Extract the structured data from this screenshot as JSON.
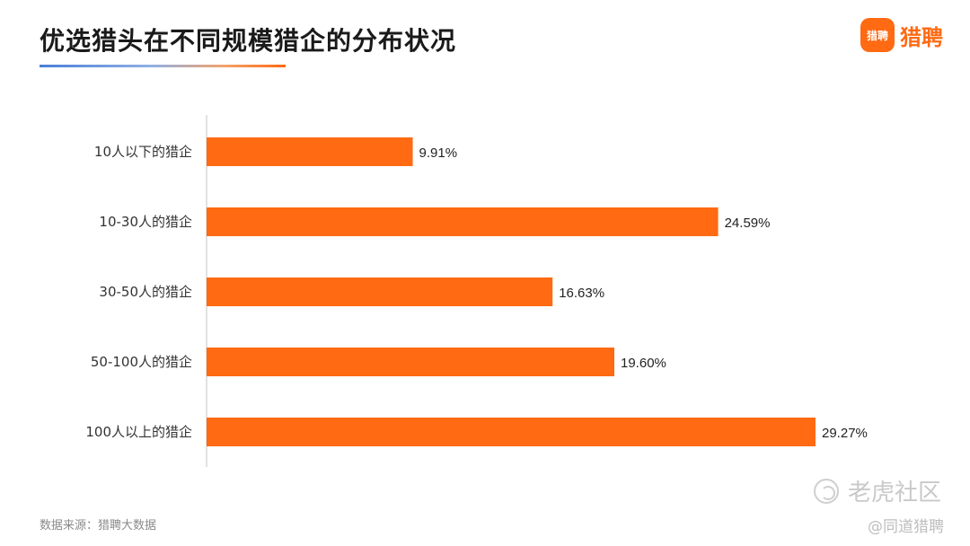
{
  "title": "优选猎头在不同规模猎企的分布状况",
  "logo": {
    "badge_text": "猎聘",
    "brand_text": "猎聘"
  },
  "source": "数据来源：猎聘大数据",
  "watermark": {
    "site": "老虎社区",
    "handle": "@同道猎聘"
  },
  "colors": {
    "bar": "#ff6a13",
    "axis": "#d9d9d9",
    "accent": "#ff6a13"
  },
  "chart_data": {
    "type": "bar",
    "orientation": "horizontal",
    "categories": [
      "10人以下的猎企",
      "10-30人的猎企",
      "30-50人的猎企",
      "50-100人的猎企",
      "100人以上的猎企"
    ],
    "values": [
      9.91,
      24.59,
      16.63,
      19.6,
      29.27
    ],
    "value_labels": [
      "9.91%",
      "24.59%",
      "16.63%",
      "19.60%",
      "29.27%"
    ],
    "unit": "%",
    "xlim": [
      0,
      30
    ],
    "grid": false,
    "legend": "none"
  }
}
